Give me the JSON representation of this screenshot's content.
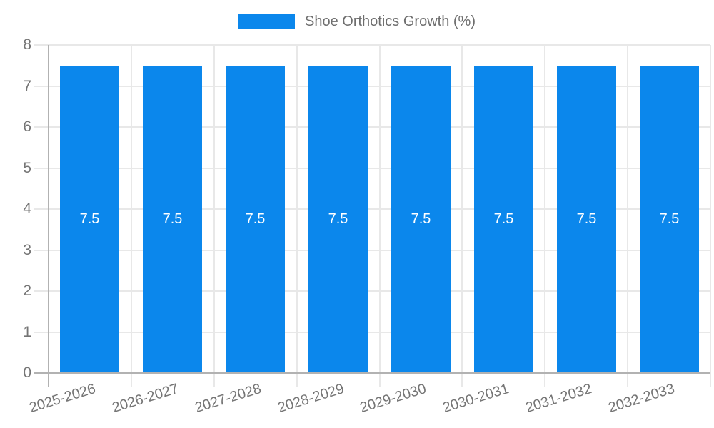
{
  "legend": {
    "label": "Shoe Orthotics Growth (%)"
  },
  "chart_data": {
    "type": "bar",
    "title": "",
    "xlabel": "",
    "ylabel": "",
    "categories": [
      "2025-2026",
      "2026-2027",
      "2027-2028",
      "2028-2029",
      "2029-2030",
      "2030-2031",
      "2031-2032",
      "2032-2033"
    ],
    "series": [
      {
        "name": "Shoe Orthotics Growth (%)",
        "values": [
          7.5,
          7.5,
          7.5,
          7.5,
          7.5,
          7.5,
          7.5,
          7.5
        ]
      }
    ],
    "value_labels": [
      "7.5",
      "7.5",
      "7.5",
      "7.5",
      "7.5",
      "7.5",
      "7.5",
      "7.5"
    ],
    "ylim": [
      0,
      8
    ],
    "yticks": [
      0,
      1,
      2,
      3,
      4,
      5,
      6,
      7,
      8
    ],
    "grid": true,
    "legend_position": "top",
    "colors": {
      "bar": "#0b87ec",
      "axis_label": "#757575",
      "value_label": "#ffffff",
      "gridline": "#e8e8e8",
      "axis_line": "#b2b2b2"
    }
  }
}
